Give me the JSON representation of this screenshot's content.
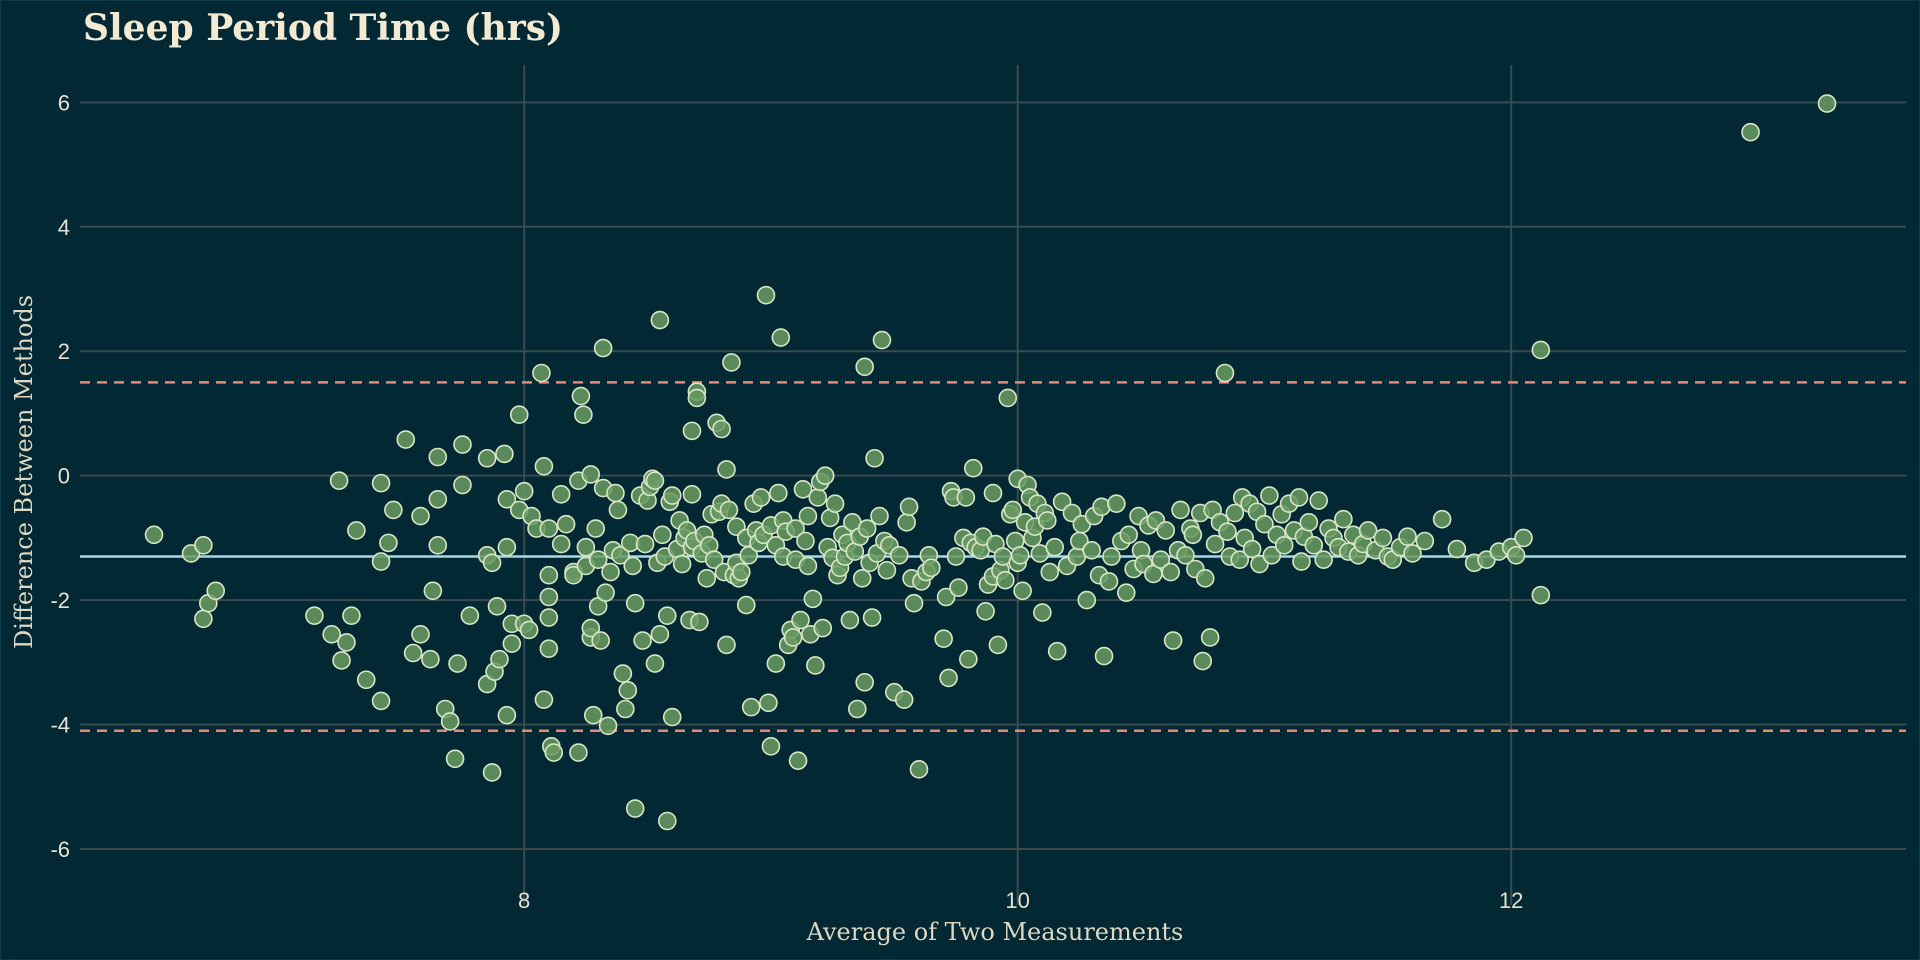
{
  "chart_data": {
    "type": "scatter",
    "title": "Sleep Period Time (hrs)",
    "xlabel": "Average of Two Measurements",
    "ylabel": "Difference Between Methods",
    "xlim": [
      6.2,
      13.6
    ],
    "ylim": [
      -6.9,
      6.6
    ],
    "xticks": [
      8,
      10,
      12
    ],
    "yticks": [
      -6,
      -4,
      -2,
      0,
      2,
      4,
      6
    ],
    "grid": true,
    "mean_difference": -1.3,
    "upper_limit": 1.5,
    "lower_limit": -4.1,
    "colors": {
      "background": "#022833",
      "grid": "#3a4a4f",
      "points_fill": "#6a9a62",
      "points_stroke": "#d6e6c6",
      "mean_line": "#a8d8e6",
      "limit_lines": "#e08a7e"
    },
    "points": [
      [
        6.5,
        -0.95
      ],
      [
        6.65,
        -1.25
      ],
      [
        6.7,
        -1.12
      ],
      [
        6.7,
        -2.3
      ],
      [
        6.72,
        -2.05
      ],
      [
        6.75,
        -1.85
      ],
      [
        7.15,
        -2.25
      ],
      [
        7.22,
        -2.55
      ],
      [
        7.25,
        -0.08
      ],
      [
        7.26,
        -2.97
      ],
      [
        7.28,
        -2.68
      ],
      [
        7.3,
        -2.25
      ],
      [
        7.32,
        -0.88
      ],
      [
        7.36,
        -3.28
      ],
      [
        7.42,
        -3.62
      ],
      [
        7.42,
        -1.38
      ],
      [
        7.42,
        -0.12
      ],
      [
        7.45,
        -1.08
      ],
      [
        7.47,
        -0.55
      ],
      [
        7.52,
        0.58
      ],
      [
        7.55,
        -2.85
      ],
      [
        7.58,
        -2.55
      ],
      [
        7.58,
        -0.65
      ],
      [
        7.62,
        -2.95
      ],
      [
        7.63,
        -1.85
      ],
      [
        7.65,
        -0.38
      ],
      [
        7.65,
        -1.12
      ],
      [
        7.65,
        0.3
      ],
      [
        7.68,
        -3.75
      ],
      [
        7.7,
        -3.95
      ],
      [
        7.72,
        -4.55
      ],
      [
        7.73,
        -3.02
      ],
      [
        7.75,
        0.5
      ],
      [
        7.75,
        -0.15
      ],
      [
        7.78,
        -2.25
      ],
      [
        7.85,
        -3.35
      ],
      [
        7.85,
        -1.28
      ],
      [
        7.85,
        0.28
      ],
      [
        7.87,
        -4.77
      ],
      [
        7.87,
        -1.4
      ],
      [
        7.88,
        -3.15
      ],
      [
        7.89,
        -2.1
      ],
      [
        7.9,
        -2.95
      ],
      [
        7.92,
        0.35
      ],
      [
        7.93,
        -1.15
      ],
      [
        7.93,
        -0.38
      ],
      [
        7.93,
        -3.85
      ],
      [
        7.95,
        -2.7
      ],
      [
        7.95,
        -2.38
      ],
      [
        7.98,
        -0.55
      ],
      [
        7.98,
        0.98
      ],
      [
        8.0,
        -0.25
      ],
      [
        8.0,
        -2.38
      ],
      [
        8.02,
        -2.48
      ],
      [
        8.03,
        -0.65
      ],
      [
        8.05,
        -0.85
      ],
      [
        8.07,
        1.65
      ],
      [
        8.08,
        -3.6
      ],
      [
        8.08,
        0.15
      ],
      [
        8.1,
        -0.85
      ],
      [
        8.1,
        -1.95
      ],
      [
        8.1,
        -2.28
      ],
      [
        8.1,
        -2.78
      ],
      [
        8.1,
        -1.6
      ],
      [
        8.11,
        -4.35
      ],
      [
        8.12,
        -4.45
      ],
      [
        8.15,
        -1.1
      ],
      [
        8.15,
        -0.3
      ],
      [
        8.17,
        -0.78
      ],
      [
        8.2,
        -1.55
      ],
      [
        8.2,
        -1.6
      ],
      [
        8.22,
        -0.08
      ],
      [
        8.22,
        -4.45
      ],
      [
        8.23,
        1.28
      ],
      [
        8.24,
        0.98
      ],
      [
        8.25,
        -1.15
      ],
      [
        8.25,
        -1.45
      ],
      [
        8.27,
        0.02
      ],
      [
        8.27,
        -2.6
      ],
      [
        8.27,
        -2.45
      ],
      [
        8.28,
        -3.85
      ],
      [
        8.29,
        -0.85
      ],
      [
        8.3,
        -2.1
      ],
      [
        8.3,
        -1.35
      ],
      [
        8.31,
        -2.65
      ],
      [
        8.32,
        -0.2
      ],
      [
        8.32,
        2.05
      ],
      [
        8.33,
        -1.88
      ],
      [
        8.34,
        -4.02
      ],
      [
        8.35,
        -1.55
      ],
      [
        8.36,
        -1.2
      ],
      [
        8.37,
        -0.28
      ],
      [
        8.38,
        -0.55
      ],
      [
        8.39,
        -1.28
      ],
      [
        8.4,
        -3.18
      ],
      [
        8.41,
        -3.75
      ],
      [
        8.42,
        -3.45
      ],
      [
        8.43,
        -1.08
      ],
      [
        8.44,
        -1.45
      ],
      [
        8.45,
        -2.05
      ],
      [
        8.45,
        -5.35
      ],
      [
        8.47,
        -0.32
      ],
      [
        8.48,
        -2.65
      ],
      [
        8.49,
        -1.1
      ],
      [
        8.5,
        -0.4
      ],
      [
        8.51,
        -0.18
      ],
      [
        8.52,
        -0.05
      ],
      [
        8.53,
        -3.02
      ],
      [
        8.53,
        -0.08
      ],
      [
        8.54,
        -1.4
      ],
      [
        8.55,
        2.5
      ],
      [
        8.55,
        -2.55
      ],
      [
        8.56,
        -0.95
      ],
      [
        8.57,
        -1.3
      ],
      [
        8.58,
        -5.55
      ],
      [
        8.58,
        -2.25
      ],
      [
        8.59,
        -0.42
      ],
      [
        8.6,
        -3.88
      ],
      [
        8.6,
        -0.32
      ],
      [
        8.62,
        -1.18
      ],
      [
        8.63,
        -0.72
      ],
      [
        8.64,
        -1.42
      ],
      [
        8.65,
        -1.0
      ],
      [
        8.66,
        -0.88
      ],
      [
        8.67,
        -2.32
      ],
      [
        8.68,
        -0.3
      ],
      [
        8.68,
        -1.15
      ],
      [
        8.68,
        0.72
      ],
      [
        8.69,
        -1.05
      ],
      [
        8.7,
        1.35
      ],
      [
        8.7,
        1.25
      ],
      [
        8.71,
        -2.35
      ],
      [
        8.72,
        -1.25
      ],
      [
        8.73,
        -0.95
      ],
      [
        8.74,
        -1.65
      ],
      [
        8.75,
        -1.12
      ],
      [
        8.76,
        -0.62
      ],
      [
        8.77,
        -1.35
      ],
      [
        8.78,
        0.85
      ],
      [
        8.79,
        -0.58
      ],
      [
        8.8,
        0.75
      ],
      [
        8.8,
        -0.45
      ],
      [
        8.81,
        -1.55
      ],
      [
        8.82,
        0.1
      ],
      [
        8.82,
        -2.72
      ],
      [
        8.83,
        -0.55
      ],
      [
        8.84,
        1.82
      ],
      [
        8.85,
        -1.6
      ],
      [
        8.86,
        -1.4
      ],
      [
        8.86,
        -0.82
      ],
      [
        8.87,
        -1.65
      ],
      [
        8.88,
        -1.55
      ],
      [
        8.9,
        -2.08
      ],
      [
        8.9,
        -1.0
      ],
      [
        8.91,
        -1.28
      ],
      [
        8.92,
        -3.72
      ],
      [
        8.93,
        -0.45
      ],
      [
        8.94,
        -0.88
      ],
      [
        8.95,
        -1.08
      ],
      [
        8.96,
        -0.35
      ],
      [
        8.97,
        -0.95
      ],
      [
        8.98,
        2.9
      ],
      [
        8.99,
        -3.65
      ],
      [
        9.0,
        -4.35
      ],
      [
        9.0,
        -0.8
      ],
      [
        9.02,
        -3.02
      ],
      [
        9.02,
        -1.12
      ],
      [
        9.03,
        -0.28
      ],
      [
        9.04,
        2.22
      ],
      [
        9.05,
        -0.72
      ],
      [
        9.05,
        -1.3
      ],
      [
        9.06,
        -0.9
      ],
      [
        9.07,
        -2.72
      ],
      [
        9.08,
        -2.48
      ],
      [
        9.09,
        -2.6
      ],
      [
        9.1,
        -1.35
      ],
      [
        9.1,
        -0.85
      ],
      [
        9.11,
        -4.58
      ],
      [
        9.12,
        -2.32
      ],
      [
        9.13,
        -0.22
      ],
      [
        9.14,
        -1.05
      ],
      [
        9.15,
        -1.45
      ],
      [
        9.15,
        -0.65
      ],
      [
        9.16,
        -2.55
      ],
      [
        9.17,
        -1.98
      ],
      [
        9.18,
        -3.05
      ],
      [
        9.19,
        -0.35
      ],
      [
        9.2,
        -0.1
      ],
      [
        9.21,
        -2.45
      ],
      [
        9.22,
        0.0
      ],
      [
        9.23,
        -1.15
      ],
      [
        9.24,
        -0.68
      ],
      [
        9.25,
        -1.32
      ],
      [
        9.26,
        -0.45
      ],
      [
        9.27,
        -1.6
      ],
      [
        9.28,
        -1.48
      ],
      [
        9.29,
        -0.95
      ],
      [
        9.3,
        -1.3
      ],
      [
        9.31,
        -1.08
      ],
      [
        9.32,
        -2.32
      ],
      [
        9.33,
        -0.75
      ],
      [
        9.34,
        -1.22
      ],
      [
        9.35,
        -3.75
      ],
      [
        9.36,
        -0.98
      ],
      [
        9.37,
        -1.65
      ],
      [
        9.38,
        1.75
      ],
      [
        9.38,
        -3.32
      ],
      [
        9.39,
        -0.85
      ],
      [
        9.4,
        -1.4
      ],
      [
        9.41,
        -2.28
      ],
      [
        9.42,
        0.28
      ],
      [
        9.43,
        -1.25
      ],
      [
        9.44,
        -0.65
      ],
      [
        9.45,
        2.18
      ],
      [
        9.46,
        -1.05
      ],
      [
        9.47,
        -1.52
      ],
      [
        9.48,
        -1.12
      ],
      [
        9.5,
        -3.48
      ],
      [
        9.52,
        -1.28
      ],
      [
        9.54,
        -3.6
      ],
      [
        9.55,
        -0.75
      ],
      [
        9.56,
        -0.5
      ],
      [
        9.57,
        -1.65
      ],
      [
        9.58,
        -2.05
      ],
      [
        9.6,
        -4.72
      ],
      [
        9.61,
        -1.7
      ],
      [
        9.63,
        -1.55
      ],
      [
        9.64,
        -1.28
      ],
      [
        9.65,
        -1.48
      ],
      [
        9.7,
        -2.62
      ],
      [
        9.71,
        -1.95
      ],
      [
        9.72,
        -3.25
      ],
      [
        9.73,
        -0.25
      ],
      [
        9.74,
        -0.35
      ],
      [
        9.75,
        -1.3
      ],
      [
        9.76,
        -1.8
      ],
      [
        9.78,
        -1.0
      ],
      [
        9.79,
        -0.35
      ],
      [
        9.8,
        -2.95
      ],
      [
        9.81,
        -1.08
      ],
      [
        9.82,
        0.12
      ],
      [
        9.83,
        -1.15
      ],
      [
        9.85,
        -1.2
      ],
      [
        9.86,
        -0.98
      ],
      [
        9.87,
        -2.18
      ],
      [
        9.88,
        -1.75
      ],
      [
        9.9,
        -1.62
      ],
      [
        9.9,
        -0.28
      ],
      [
        9.91,
        -1.1
      ],
      [
        9.92,
        -2.72
      ],
      [
        9.93,
        -1.52
      ],
      [
        9.94,
        -1.3
      ],
      [
        9.95,
        -1.68
      ],
      [
        9.96,
        1.25
      ],
      [
        9.97,
        -0.62
      ],
      [
        9.98,
        -0.55
      ],
      [
        9.99,
        -1.05
      ],
      [
        10.0,
        -0.05
      ],
      [
        10.0,
        -1.4
      ],
      [
        10.01,
        -1.28
      ],
      [
        10.02,
        -1.85
      ],
      [
        10.03,
        -0.75
      ],
      [
        10.04,
        -0.15
      ],
      [
        10.05,
        -0.35
      ],
      [
        10.06,
        -1.0
      ],
      [
        10.07,
        -0.82
      ],
      [
        10.08,
        -0.45
      ],
      [
        10.09,
        -1.25
      ],
      [
        10.1,
        -2.2
      ],
      [
        10.11,
        -0.6
      ],
      [
        10.12,
        -0.72
      ],
      [
        10.13,
        -1.55
      ],
      [
        10.15,
        -1.15
      ],
      [
        10.16,
        -2.82
      ],
      [
        10.18,
        -0.42
      ],
      [
        10.2,
        -1.45
      ],
      [
        10.22,
        -0.6
      ],
      [
        10.24,
        -1.3
      ],
      [
        10.25,
        -1.05
      ],
      [
        10.26,
        -0.78
      ],
      [
        10.28,
        -2.0
      ],
      [
        10.3,
        -1.2
      ],
      [
        10.31,
        -0.65
      ],
      [
        10.33,
        -1.6
      ],
      [
        10.34,
        -0.5
      ],
      [
        10.35,
        -2.9
      ],
      [
        10.37,
        -1.7
      ],
      [
        10.38,
        -1.3
      ],
      [
        10.4,
        -0.45
      ],
      [
        10.42,
        -1.05
      ],
      [
        10.44,
        -1.88
      ],
      [
        10.45,
        -0.95
      ],
      [
        10.47,
        -1.5
      ],
      [
        10.49,
        -0.65
      ],
      [
        10.5,
        -1.2
      ],
      [
        10.51,
        -1.42
      ],
      [
        10.53,
        -0.8
      ],
      [
        10.55,
        -1.58
      ],
      [
        10.56,
        -0.72
      ],
      [
        10.58,
        -1.35
      ],
      [
        10.6,
        -0.88
      ],
      [
        10.62,
        -1.55
      ],
      [
        10.63,
        -2.65
      ],
      [
        10.65,
        -1.2
      ],
      [
        10.66,
        -0.55
      ],
      [
        10.68,
        -1.28
      ],
      [
        10.7,
        -0.85
      ],
      [
        10.71,
        -0.95
      ],
      [
        10.72,
        -1.5
      ],
      [
        10.74,
        -0.6
      ],
      [
        10.75,
        -2.98
      ],
      [
        10.76,
        -1.65
      ],
      [
        10.78,
        -2.6
      ],
      [
        10.79,
        -0.55
      ],
      [
        10.8,
        -1.1
      ],
      [
        10.82,
        -0.75
      ],
      [
        10.84,
        1.65
      ],
      [
        10.85,
        -0.9
      ],
      [
        10.86,
        -1.3
      ],
      [
        10.88,
        -0.6
      ],
      [
        10.9,
        -1.35
      ],
      [
        10.91,
        -0.35
      ],
      [
        10.92,
        -1.0
      ],
      [
        10.94,
        -0.45
      ],
      [
        10.95,
        -1.18
      ],
      [
        10.97,
        -0.58
      ],
      [
        10.98,
        -1.42
      ],
      [
        11.0,
        -0.78
      ],
      [
        11.02,
        -0.32
      ],
      [
        11.03,
        -1.28
      ],
      [
        11.05,
        -0.95
      ],
      [
        11.07,
        -0.62
      ],
      [
        11.08,
        -1.12
      ],
      [
        11.1,
        -0.45
      ],
      [
        11.12,
        -0.88
      ],
      [
        11.14,
        -0.35
      ],
      [
        11.15,
        -1.38
      ],
      [
        11.16,
        -0.98
      ],
      [
        11.18,
        -0.75
      ],
      [
        11.2,
        -1.12
      ],
      [
        11.22,
        -0.4
      ],
      [
        11.24,
        -1.35
      ],
      [
        11.26,
        -0.85
      ],
      [
        11.28,
        -1.0
      ],
      [
        11.3,
        -1.15
      ],
      [
        11.32,
        -0.7
      ],
      [
        11.34,
        -1.22
      ],
      [
        11.36,
        -0.95
      ],
      [
        11.38,
        -1.28
      ],
      [
        11.4,
        -1.1
      ],
      [
        11.42,
        -0.88
      ],
      [
        11.45,
        -1.2
      ],
      [
        11.48,
        -1.0
      ],
      [
        11.5,
        -1.3
      ],
      [
        11.52,
        -1.35
      ],
      [
        11.55,
        -1.15
      ],
      [
        11.58,
        -0.98
      ],
      [
        11.6,
        -1.25
      ],
      [
        11.65,
        -1.05
      ],
      [
        11.72,
        -0.7
      ],
      [
        11.78,
        -1.18
      ],
      [
        11.85,
        -1.4
      ],
      [
        11.9,
        -1.35
      ],
      [
        11.95,
        -1.22
      ],
      [
        12.0,
        -1.15
      ],
      [
        12.02,
        -1.28
      ],
      [
        12.05,
        -1.0
      ],
      [
        12.12,
        -1.92
      ],
      [
        12.12,
        2.02
      ],
      [
        12.97,
        5.52
      ],
      [
        13.28,
        5.98
      ]
    ]
  }
}
